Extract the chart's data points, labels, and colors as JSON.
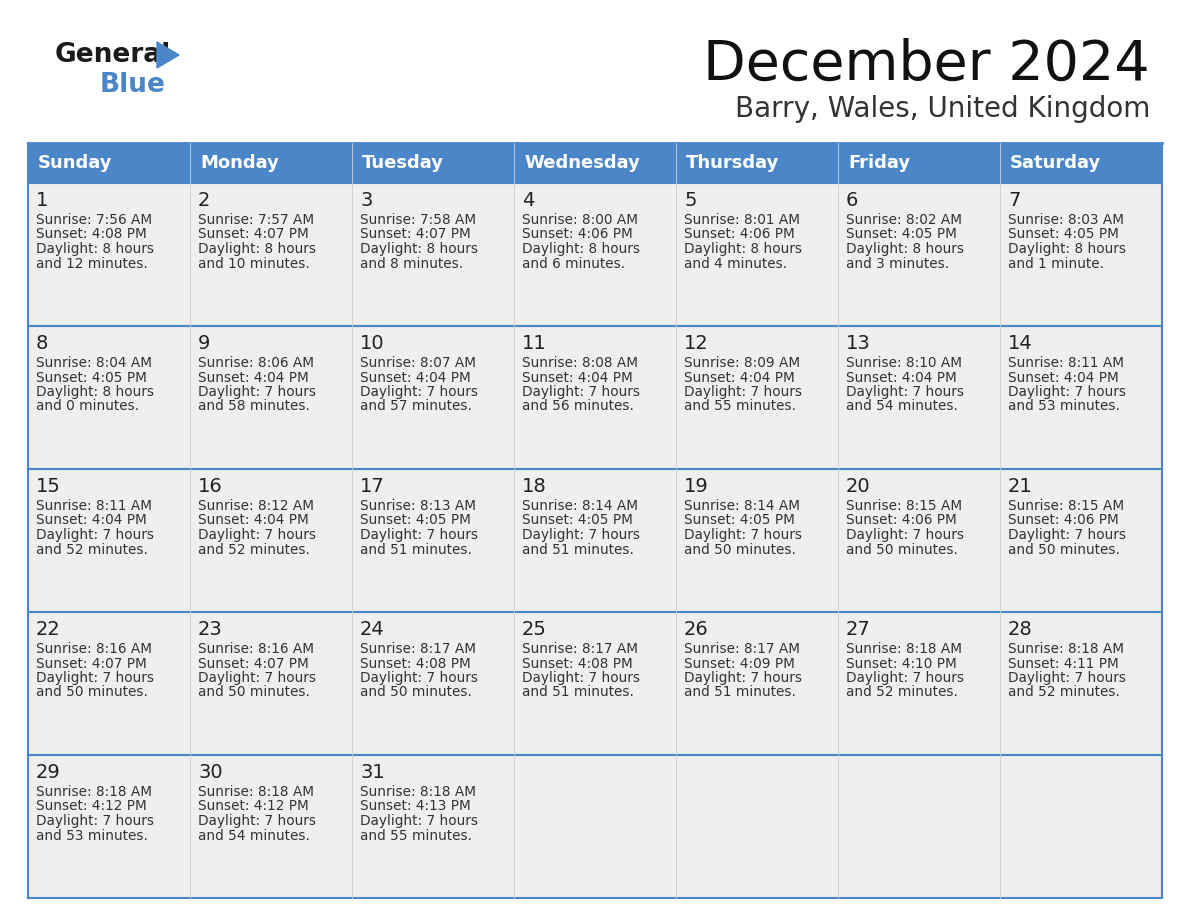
{
  "title": "December 2024",
  "subtitle": "Barry, Wales, United Kingdom",
  "header_color": "#4a86c8",
  "header_text_color": "#ffffff",
  "day_names": [
    "Sunday",
    "Monday",
    "Tuesday",
    "Wednesday",
    "Thursday",
    "Friday",
    "Saturday"
  ],
  "bg_color": "#ffffff",
  "cell_bg_color": "#efefef",
  "separator_color": "#4a86c8",
  "text_color": "#333333",
  "days": [
    {
      "day": 1,
      "col": 0,
      "row": 0,
      "sunrise": "7:56 AM",
      "sunset": "4:08 PM",
      "daylight": "8 hours and 12 minutes"
    },
    {
      "day": 2,
      "col": 1,
      "row": 0,
      "sunrise": "7:57 AM",
      "sunset": "4:07 PM",
      "daylight": "8 hours and 10 minutes"
    },
    {
      "day": 3,
      "col": 2,
      "row": 0,
      "sunrise": "7:58 AM",
      "sunset": "4:07 PM",
      "daylight": "8 hours and 8 minutes"
    },
    {
      "day": 4,
      "col": 3,
      "row": 0,
      "sunrise": "8:00 AM",
      "sunset": "4:06 PM",
      "daylight": "8 hours and 6 minutes"
    },
    {
      "day": 5,
      "col": 4,
      "row": 0,
      "sunrise": "8:01 AM",
      "sunset": "4:06 PM",
      "daylight": "8 hours and 4 minutes"
    },
    {
      "day": 6,
      "col": 5,
      "row": 0,
      "sunrise": "8:02 AM",
      "sunset": "4:05 PM",
      "daylight": "8 hours and 3 minutes"
    },
    {
      "day": 7,
      "col": 6,
      "row": 0,
      "sunrise": "8:03 AM",
      "sunset": "4:05 PM",
      "daylight": "8 hours and 1 minute"
    },
    {
      "day": 8,
      "col": 0,
      "row": 1,
      "sunrise": "8:04 AM",
      "sunset": "4:05 PM",
      "daylight": "8 hours and 0 minutes"
    },
    {
      "day": 9,
      "col": 1,
      "row": 1,
      "sunrise": "8:06 AM",
      "sunset": "4:04 PM",
      "daylight": "7 hours and 58 minutes"
    },
    {
      "day": 10,
      "col": 2,
      "row": 1,
      "sunrise": "8:07 AM",
      "sunset": "4:04 PM",
      "daylight": "7 hours and 57 minutes"
    },
    {
      "day": 11,
      "col": 3,
      "row": 1,
      "sunrise": "8:08 AM",
      "sunset": "4:04 PM",
      "daylight": "7 hours and 56 minutes"
    },
    {
      "day": 12,
      "col": 4,
      "row": 1,
      "sunrise": "8:09 AM",
      "sunset": "4:04 PM",
      "daylight": "7 hours and 55 minutes"
    },
    {
      "day": 13,
      "col": 5,
      "row": 1,
      "sunrise": "8:10 AM",
      "sunset": "4:04 PM",
      "daylight": "7 hours and 54 minutes"
    },
    {
      "day": 14,
      "col": 6,
      "row": 1,
      "sunrise": "8:11 AM",
      "sunset": "4:04 PM",
      "daylight": "7 hours and 53 minutes"
    },
    {
      "day": 15,
      "col": 0,
      "row": 2,
      "sunrise": "8:11 AM",
      "sunset": "4:04 PM",
      "daylight": "7 hours and 52 minutes"
    },
    {
      "day": 16,
      "col": 1,
      "row": 2,
      "sunrise": "8:12 AM",
      "sunset": "4:04 PM",
      "daylight": "7 hours and 52 minutes"
    },
    {
      "day": 17,
      "col": 2,
      "row": 2,
      "sunrise": "8:13 AM",
      "sunset": "4:05 PM",
      "daylight": "7 hours and 51 minutes"
    },
    {
      "day": 18,
      "col": 3,
      "row": 2,
      "sunrise": "8:14 AM",
      "sunset": "4:05 PM",
      "daylight": "7 hours and 51 minutes"
    },
    {
      "day": 19,
      "col": 4,
      "row": 2,
      "sunrise": "8:14 AM",
      "sunset": "4:05 PM",
      "daylight": "7 hours and 50 minutes"
    },
    {
      "day": 20,
      "col": 5,
      "row": 2,
      "sunrise": "8:15 AM",
      "sunset": "4:06 PM",
      "daylight": "7 hours and 50 minutes"
    },
    {
      "day": 21,
      "col": 6,
      "row": 2,
      "sunrise": "8:15 AM",
      "sunset": "4:06 PM",
      "daylight": "7 hours and 50 minutes"
    },
    {
      "day": 22,
      "col": 0,
      "row": 3,
      "sunrise": "8:16 AM",
      "sunset": "4:07 PM",
      "daylight": "7 hours and 50 minutes"
    },
    {
      "day": 23,
      "col": 1,
      "row": 3,
      "sunrise": "8:16 AM",
      "sunset": "4:07 PM",
      "daylight": "7 hours and 50 minutes"
    },
    {
      "day": 24,
      "col": 2,
      "row": 3,
      "sunrise": "8:17 AM",
      "sunset": "4:08 PM",
      "daylight": "7 hours and 50 minutes"
    },
    {
      "day": 25,
      "col": 3,
      "row": 3,
      "sunrise": "8:17 AM",
      "sunset": "4:08 PM",
      "daylight": "7 hours and 51 minutes"
    },
    {
      "day": 26,
      "col": 4,
      "row": 3,
      "sunrise": "8:17 AM",
      "sunset": "4:09 PM",
      "daylight": "7 hours and 51 minutes"
    },
    {
      "day": 27,
      "col": 5,
      "row": 3,
      "sunrise": "8:18 AM",
      "sunset": "4:10 PM",
      "daylight": "7 hours and 52 minutes"
    },
    {
      "day": 28,
      "col": 6,
      "row": 3,
      "sunrise": "8:18 AM",
      "sunset": "4:11 PM",
      "daylight": "7 hours and 52 minutes"
    },
    {
      "day": 29,
      "col": 0,
      "row": 4,
      "sunrise": "8:18 AM",
      "sunset": "4:12 PM",
      "daylight": "7 hours and 53 minutes"
    },
    {
      "day": 30,
      "col": 1,
      "row": 4,
      "sunrise": "8:18 AM",
      "sunset": "4:12 PM",
      "daylight": "7 hours and 54 minutes"
    },
    {
      "day": 31,
      "col": 2,
      "row": 4,
      "sunrise": "8:18 AM",
      "sunset": "4:13 PM",
      "daylight": "7 hours and 55 minutes"
    }
  ]
}
